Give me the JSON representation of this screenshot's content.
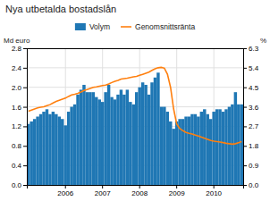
{
  "chart_data": {
    "type": "bar",
    "title": "Nya utbetalda bostadslån",
    "ylabel": "Md euro",
    "y2label": "%",
    "categories": [
      null,
      null,
      null,
      null,
      null,
      null,
      null,
      null,
      null,
      null,
      null,
      null,
      "2006",
      null,
      null,
      null,
      null,
      null,
      null,
      null,
      null,
      null,
      null,
      null,
      "2007",
      null,
      null,
      null,
      null,
      null,
      null,
      null,
      null,
      null,
      null,
      null,
      "2008",
      null,
      null,
      null,
      null,
      null,
      null,
      null,
      null,
      null,
      null,
      null,
      "2009",
      null,
      null,
      null,
      null,
      null,
      null,
      null,
      null,
      null,
      null,
      null,
      "2010",
      null,
      null,
      null,
      null,
      null,
      null,
      null,
      null,
      null
    ],
    "series": [
      {
        "name": "Volym",
        "type": "bar",
        "values": [
          1.25,
          1.3,
          1.35,
          1.4,
          1.45,
          1.5,
          1.55,
          1.45,
          1.5,
          1.45,
          1.4,
          1.35,
          1.22,
          1.5,
          1.6,
          1.65,
          1.85,
          1.95,
          2.05,
          1.9,
          1.9,
          1.9,
          1.8,
          1.75,
          1.7,
          1.9,
          2.05,
          1.8,
          1.75,
          1.85,
          1.95,
          1.85,
          1.95,
          1.7,
          1.65,
          1.9,
          2.0,
          2.1,
          2.05,
          1.85,
          2.1,
          2.2,
          2.3,
          1.6,
          1.6,
          1.5,
          1.3,
          1.15,
          1.3,
          1.35,
          1.35,
          1.4,
          1.4,
          1.45,
          1.45,
          1.4,
          1.5,
          1.55,
          1.45,
          1.35,
          1.5,
          1.55,
          1.55,
          1.5,
          1.55,
          1.6,
          1.65,
          1.9,
          1.65,
          1.65
        ]
      },
      {
        "name": "Genomsnittsränta",
        "type": "line",
        "axis": "y2",
        "values": [
          3.4,
          3.45,
          3.5,
          3.55,
          3.58,
          3.6,
          3.65,
          3.7,
          3.78,
          3.85,
          3.9,
          3.95,
          4.0,
          4.08,
          4.15,
          4.18,
          4.22,
          4.28,
          4.35,
          4.4,
          4.45,
          4.5,
          4.52,
          4.55,
          4.58,
          4.6,
          4.65,
          4.72,
          4.78,
          4.82,
          4.88,
          4.9,
          4.92,
          4.95,
          4.98,
          5.0,
          5.05,
          5.1,
          5.15,
          5.2,
          5.28,
          5.35,
          5.4,
          5.42,
          5.38,
          5.1,
          4.5,
          3.5,
          2.8,
          2.6,
          2.5,
          2.42,
          2.38,
          2.35,
          2.3,
          2.25,
          2.2,
          2.15,
          2.1,
          2.05,
          2.02,
          2.0,
          1.98,
          1.95,
          1.92,
          1.9,
          1.88,
          1.9,
          1.95,
          2.0
        ]
      }
    ],
    "ylim": [
      0.0,
      2.8
    ],
    "yticks": [
      {
        "value": 0,
        "label": "0.0"
      },
      0.4,
      0.8,
      1.2,
      1.6,
      {
        "value": 2,
        "label": "2.0"
      },
      2.4,
      2.8
    ],
    "y2lim": [
      0.0,
      6.3
    ],
    "y2ticks": [
      {
        "value": 0,
        "label": "0.0"
      },
      0.9,
      1.8,
      2.7,
      3.6,
      4.5,
      5.4,
      6.3
    ],
    "grid": true,
    "legend": "top"
  }
}
